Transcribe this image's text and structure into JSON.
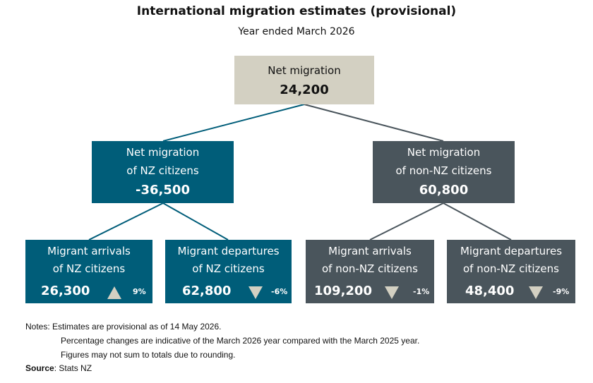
{
  "title": "International migration estimates (provisional)",
  "subtitle": "Year ended March 2026",
  "root": {
    "label": "Net migration",
    "value": "24,200"
  },
  "nz": {
    "label_line1": "Net migration",
    "label_line2": "of NZ citizens",
    "value": "-36,500"
  },
  "non_nz": {
    "label_line1": "Net migration",
    "label_line2": "of non-NZ citizens",
    "value": "60,800"
  },
  "leaves": [
    {
      "line1": "Migrant arrivals",
      "line2": "of NZ citizens",
      "value": "26,300",
      "trend": "up-arrow-icon",
      "change": "9%"
    },
    {
      "line1": "Migrant departures",
      "line2": "of NZ citizens",
      "value": "62,800",
      "trend": "down-arrow-icon",
      "change": "-6%"
    },
    {
      "line1": "Migrant arrivals",
      "line2": "of non-NZ citizens",
      "value": "109,200",
      "trend": "down-arrow-icon",
      "change": "-1%"
    },
    {
      "line1": "Migrant departures",
      "line2": "of non-NZ citizens",
      "value": "48,400",
      "trend": "down-arrow-icon",
      "change": "-9%"
    }
  ],
  "notes": {
    "label": "Notes:",
    "line1": "Estimates are provisional as of 14 May 2026.",
    "line2": "Percentage changes are indicative of the March 2026 year compared with the March 2025 year.",
    "line3": "Figures may not sum to totals due to rounding."
  },
  "source": {
    "label": "Source",
    "text": ": Stats NZ"
  },
  "colors": {
    "nz": "#005d79",
    "non_nz": "#4a555c",
    "root": "#d3d0c2",
    "arrow": "#d3d0c2"
  }
}
